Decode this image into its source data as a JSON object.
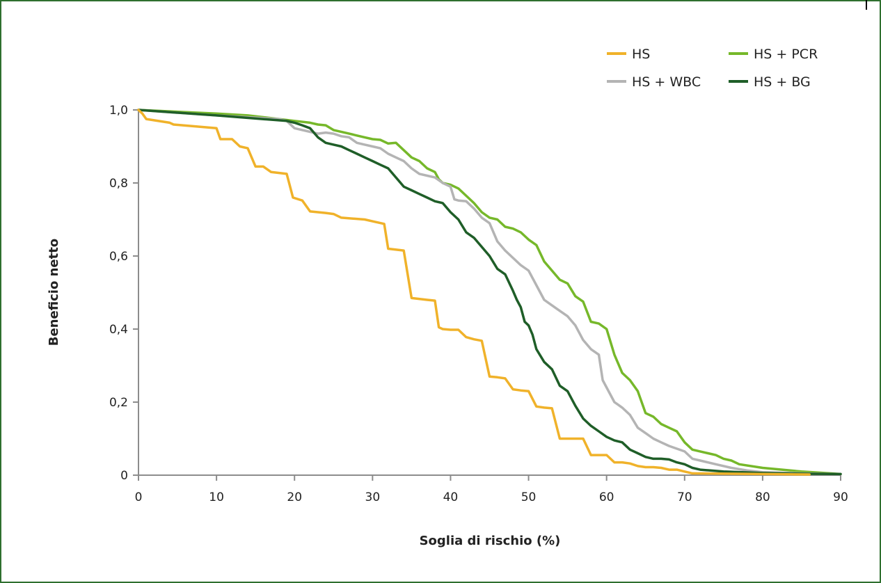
{
  "colors": {
    "frame": "#2f6f2f",
    "axis": "#8c8c8c",
    "HS": "#f0b22a",
    "HS_PCR": "#76b82a",
    "HS_WBC": "#b4b4b4",
    "HS_BG": "#1f5e28"
  },
  "chart_data": {
    "type": "line",
    "xlabel": "Soglia di rischio (%)",
    "ylabel": "Beneficio netto",
    "xlim": [
      0,
      90
    ],
    "ylim": [
      0,
      1.0
    ],
    "xticks": [
      0,
      10,
      20,
      30,
      40,
      50,
      60,
      70,
      80,
      90
    ],
    "xtick_labels": [
      "0",
      "10",
      "20",
      "30",
      "40",
      "50",
      "60",
      "70",
      "80",
      "90"
    ],
    "yticks": [
      0,
      0.2,
      0.4,
      0.6,
      0.8,
      1.0
    ],
    "ytick_labels": [
      "0",
      "0,2",
      "0,4",
      "0,6",
      "0,8",
      "1,0"
    ],
    "grid": false,
    "legend_position": "top-right",
    "series": [
      {
        "name": "HS",
        "color_key": "HS",
        "points": [
          [
            0,
            1.0
          ],
          [
            0.5,
            0.99
          ],
          [
            1,
            0.975
          ],
          [
            4,
            0.965
          ],
          [
            4.5,
            0.96
          ],
          [
            10,
            0.95
          ],
          [
            10.5,
            0.92
          ],
          [
            12,
            0.92
          ],
          [
            13,
            0.9
          ],
          [
            14,
            0.895
          ],
          [
            15,
            0.845
          ],
          [
            16,
            0.845
          ],
          [
            17,
            0.83
          ],
          [
            19,
            0.825
          ],
          [
            19.8,
            0.76
          ],
          [
            21,
            0.752
          ],
          [
            22,
            0.722
          ],
          [
            24,
            0.718
          ],
          [
            25,
            0.715
          ],
          [
            26,
            0.705
          ],
          [
            29,
            0.7
          ],
          [
            30,
            0.695
          ],
          [
            31.5,
            0.688
          ],
          [
            32,
            0.62
          ],
          [
            34,
            0.615
          ],
          [
            35,
            0.485
          ],
          [
            37,
            0.48
          ],
          [
            38,
            0.478
          ],
          [
            38.5,
            0.405
          ],
          [
            39,
            0.4
          ],
          [
            40,
            0.398
          ],
          [
            41,
            0.398
          ],
          [
            42,
            0.378
          ],
          [
            43,
            0.372
          ],
          [
            44,
            0.368
          ],
          [
            45,
            0.27
          ],
          [
            46,
            0.268
          ],
          [
            47,
            0.265
          ],
          [
            48,
            0.235
          ],
          [
            49,
            0.232
          ],
          [
            50,
            0.23
          ],
          [
            51,
            0.188
          ],
          [
            52,
            0.185
          ],
          [
            53,
            0.183
          ],
          [
            54,
            0.1
          ],
          [
            55,
            0.1
          ],
          [
            56,
            0.1
          ],
          [
            57,
            0.1
          ],
          [
            58,
            0.055
          ],
          [
            59,
            0.055
          ],
          [
            60,
            0.055
          ],
          [
            61,
            0.035
          ],
          [
            62,
            0.035
          ],
          [
            63,
            0.032
          ],
          [
            64,
            0.025
          ],
          [
            65,
            0.022
          ],
          [
            66,
            0.022
          ],
          [
            67,
            0.02
          ],
          [
            68,
            0.015
          ],
          [
            69,
            0.015
          ],
          [
            70,
            0.01
          ],
          [
            71,
            0.005
          ],
          [
            80,
            0.003
          ],
          [
            86,
            0.002
          ]
        ]
      },
      {
        "name": "HS + PCR",
        "color_key": "HS_PCR",
        "points": [
          [
            0,
            1.0
          ],
          [
            10,
            0.99
          ],
          [
            14,
            0.985
          ],
          [
            18,
            0.975
          ],
          [
            20,
            0.97
          ],
          [
            22,
            0.965
          ],
          [
            23,
            0.96
          ],
          [
            24,
            0.958
          ],
          [
            25,
            0.945
          ],
          [
            27,
            0.935
          ],
          [
            28,
            0.93
          ],
          [
            29,
            0.925
          ],
          [
            30,
            0.92
          ],
          [
            31,
            0.918
          ],
          [
            32,
            0.908
          ],
          [
            33,
            0.91
          ],
          [
            34,
            0.89
          ],
          [
            35,
            0.87
          ],
          [
            36,
            0.86
          ],
          [
            37,
            0.84
          ],
          [
            38,
            0.83
          ],
          [
            38.5,
            0.81
          ],
          [
            39,
            0.8
          ],
          [
            40,
            0.795
          ],
          [
            41,
            0.785
          ],
          [
            42,
            0.765
          ],
          [
            43,
            0.745
          ],
          [
            44,
            0.72
          ],
          [
            45,
            0.705
          ],
          [
            46,
            0.7
          ],
          [
            47,
            0.68
          ],
          [
            48,
            0.675
          ],
          [
            49,
            0.665
          ],
          [
            50,
            0.645
          ],
          [
            51,
            0.63
          ],
          [
            52,
            0.585
          ],
          [
            53,
            0.56
          ],
          [
            54,
            0.535
          ],
          [
            55,
            0.525
          ],
          [
            56,
            0.49
          ],
          [
            57,
            0.475
          ],
          [
            58,
            0.42
          ],
          [
            59,
            0.415
          ],
          [
            60,
            0.4
          ],
          [
            61,
            0.33
          ],
          [
            62,
            0.28
          ],
          [
            63,
            0.26
          ],
          [
            64,
            0.23
          ],
          [
            65,
            0.17
          ],
          [
            66,
            0.16
          ],
          [
            67,
            0.14
          ],
          [
            68,
            0.13
          ],
          [
            69,
            0.12
          ],
          [
            70,
            0.09
          ],
          [
            71,
            0.07
          ],
          [
            72,
            0.065
          ],
          [
            73,
            0.06
          ],
          [
            74,
            0.055
          ],
          [
            75,
            0.045
          ],
          [
            76,
            0.04
          ],
          [
            77,
            0.03
          ],
          [
            80,
            0.02
          ],
          [
            85,
            0.01
          ],
          [
            90,
            0.003
          ]
        ]
      },
      {
        "name": "HS + WBC",
        "color_key": "HS_WBC",
        "points": [
          [
            0,
            1.0
          ],
          [
            10,
            0.985
          ],
          [
            18,
            0.975
          ],
          [
            19,
            0.97
          ],
          [
            20,
            0.95
          ],
          [
            21,
            0.945
          ],
          [
            22,
            0.94
          ],
          [
            23,
            0.935
          ],
          [
            24,
            0.938
          ],
          [
            25,
            0.935
          ],
          [
            26,
            0.928
          ],
          [
            27,
            0.925
          ],
          [
            28,
            0.91
          ],
          [
            29,
            0.905
          ],
          [
            30,
            0.9
          ],
          [
            31,
            0.895
          ],
          [
            32,
            0.88
          ],
          [
            33,
            0.87
          ],
          [
            34,
            0.86
          ],
          [
            35,
            0.84
          ],
          [
            36,
            0.825
          ],
          [
            37,
            0.82
          ],
          [
            38,
            0.815
          ],
          [
            39,
            0.8
          ],
          [
            40,
            0.79
          ],
          [
            40.5,
            0.755
          ],
          [
            41,
            0.752
          ],
          [
            42,
            0.75
          ],
          [
            43,
            0.73
          ],
          [
            44,
            0.705
          ],
          [
            45,
            0.69
          ],
          [
            46,
            0.64
          ],
          [
            47,
            0.615
          ],
          [
            48,
            0.595
          ],
          [
            49,
            0.575
          ],
          [
            50,
            0.56
          ],
          [
            51,
            0.52
          ],
          [
            52,
            0.48
          ],
          [
            53,
            0.465
          ],
          [
            54,
            0.45
          ],
          [
            55,
            0.435
          ],
          [
            56,
            0.41
          ],
          [
            57,
            0.37
          ],
          [
            58,
            0.345
          ],
          [
            59,
            0.33
          ],
          [
            59.5,
            0.26
          ],
          [
            60,
            0.24
          ],
          [
            61,
            0.2
          ],
          [
            62,
            0.185
          ],
          [
            63,
            0.165
          ],
          [
            64,
            0.13
          ],
          [
            65,
            0.115
          ],
          [
            66,
            0.1
          ],
          [
            67,
            0.09
          ],
          [
            68,
            0.08
          ],
          [
            70,
            0.065
          ],
          [
            71,
            0.045
          ],
          [
            72,
            0.04
          ],
          [
            74,
            0.03
          ],
          [
            76,
            0.02
          ],
          [
            78,
            0.013
          ],
          [
            80,
            0.008
          ],
          [
            85,
            0.005
          ],
          [
            90,
            0.003
          ]
        ]
      },
      {
        "name": "HS + BG",
        "color_key": "HS_BG",
        "points": [
          [
            0,
            1.0
          ],
          [
            10,
            0.985
          ],
          [
            19,
            0.97
          ],
          [
            20,
            0.965
          ],
          [
            21,
            0.958
          ],
          [
            22,
            0.95
          ],
          [
            23,
            0.925
          ],
          [
            24,
            0.91
          ],
          [
            25,
            0.905
          ],
          [
            26,
            0.9
          ],
          [
            27,
            0.89
          ],
          [
            28,
            0.88
          ],
          [
            29,
            0.87
          ],
          [
            30,
            0.86
          ],
          [
            31,
            0.85
          ],
          [
            32,
            0.84
          ],
          [
            33,
            0.815
          ],
          [
            34,
            0.79
          ],
          [
            35,
            0.78
          ],
          [
            36,
            0.77
          ],
          [
            37,
            0.76
          ],
          [
            38,
            0.75
          ],
          [
            39,
            0.745
          ],
          [
            40,
            0.72
          ],
          [
            41,
            0.7
          ],
          [
            42,
            0.665
          ],
          [
            43,
            0.65
          ],
          [
            44,
            0.625
          ],
          [
            45,
            0.6
          ],
          [
            46,
            0.565
          ],
          [
            47,
            0.55
          ],
          [
            48,
            0.505
          ],
          [
            48.5,
            0.48
          ],
          [
            49,
            0.46
          ],
          [
            49.5,
            0.42
          ],
          [
            50,
            0.41
          ],
          [
            50.5,
            0.385
          ],
          [
            51,
            0.345
          ],
          [
            52,
            0.31
          ],
          [
            53,
            0.29
          ],
          [
            54,
            0.245
          ],
          [
            55,
            0.23
          ],
          [
            56,
            0.19
          ],
          [
            57,
            0.155
          ],
          [
            58,
            0.135
          ],
          [
            59,
            0.12
          ],
          [
            60,
            0.105
          ],
          [
            61,
            0.095
          ],
          [
            62,
            0.09
          ],
          [
            63,
            0.07
          ],
          [
            64,
            0.06
          ],
          [
            65,
            0.05
          ],
          [
            66,
            0.045
          ],
          [
            67,
            0.045
          ],
          [
            68,
            0.043
          ],
          [
            69,
            0.035
          ],
          [
            70,
            0.03
          ],
          [
            71,
            0.02
          ],
          [
            72,
            0.015
          ],
          [
            75,
            0.01
          ],
          [
            80,
            0.006
          ],
          [
            85,
            0.004
          ],
          [
            90,
            0.003
          ]
        ]
      }
    ]
  },
  "legend": {
    "items": [
      {
        "label": "HS",
        "color_key": "HS"
      },
      {
        "label": "HS + PCR",
        "color_key": "HS_PCR"
      },
      {
        "label": "HS + WBC",
        "color_key": "HS_WBC"
      },
      {
        "label": "HS + BG",
        "color_key": "HS_BG"
      }
    ]
  }
}
